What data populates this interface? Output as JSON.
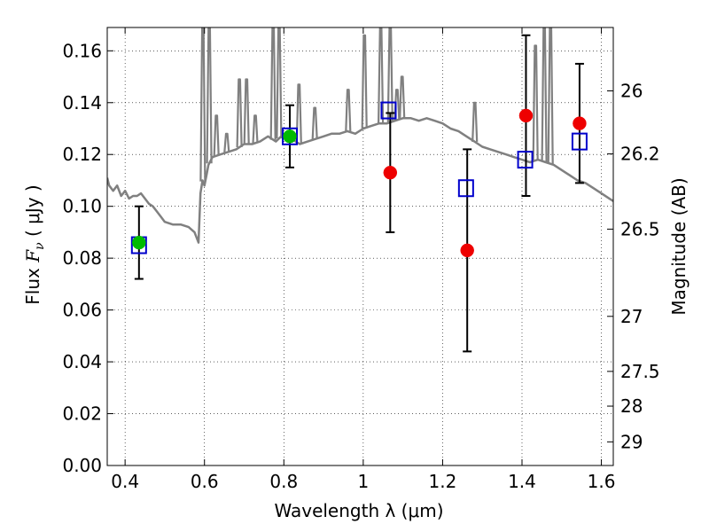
{
  "chart_data": {
    "type": "scatter",
    "title": "",
    "xlabel": "Wavelength  λ (μm)",
    "ylabel_parts": [
      "Flux  ",
      "F",
      "ν",
      "  ( μJy )"
    ],
    "y2label": "Magnitude (AB)",
    "xlim": [
      0.355,
      1.63
    ],
    "ylim": [
      0.0,
      0.169
    ],
    "grid": true,
    "grid_style": "dotted",
    "x_ticks": [
      0.4,
      0.6,
      0.8,
      1.0,
      1.2,
      1.4,
      1.6
    ],
    "x_tick_labels": [
      "0.4",
      "0.6",
      "0.8",
      "1",
      "1.2",
      "1.4",
      "1.6"
    ],
    "y_ticks": [
      0.0,
      0.02,
      0.04,
      0.06,
      0.08,
      0.1,
      0.12,
      0.14,
      0.16
    ],
    "y_tick_labels": [
      "0.00",
      "0.02",
      "0.04",
      "0.06",
      "0.08",
      "0.10",
      "0.12",
      "0.14",
      "0.16"
    ],
    "mag_ticks": [
      26,
      26.2,
      26.5,
      27,
      27.5,
      28,
      29
    ],
    "mag_tick_labels": [
      "26",
      "26.2",
      "26.5",
      "27",
      "27.5",
      "28",
      "29"
    ],
    "colors": {
      "model_spectrum": "#808080",
      "green_points": "#00bb00",
      "red_points": "#ee0000",
      "blue_squares": "#0000cc",
      "error_bars": "#000000"
    },
    "series": [
      {
        "kind": "line",
        "color": "#808080",
        "x": [
          0.355,
          0.36,
          0.37,
          0.38,
          0.39,
          0.4,
          0.41,
          0.42,
          0.43,
          0.44,
          0.45,
          0.46,
          0.47,
          0.48,
          0.49,
          0.5,
          0.52,
          0.54,
          0.56,
          0.575,
          0.585,
          0.59,
          0.595,
          0.6,
          0.605,
          0.61,
          0.62,
          0.64,
          0.66,
          0.68,
          0.7,
          0.72,
          0.74,
          0.76,
          0.78,
          0.8,
          0.82,
          0.84,
          0.86,
          0.88,
          0.9,
          0.92,
          0.94,
          0.96,
          0.98,
          1.0,
          1.02,
          1.04,
          1.06,
          1.08,
          1.1,
          1.12,
          1.14,
          1.16,
          1.18,
          1.2,
          1.22,
          1.24,
          1.26,
          1.28,
          1.3,
          1.32,
          1.34,
          1.36,
          1.38,
          1.4,
          1.42,
          1.44,
          1.46,
          1.48,
          1.5,
          1.52,
          1.54,
          1.56,
          1.58,
          1.6,
          1.62,
          1.63
        ],
        "y": [
          0.111,
          0.108,
          0.106,
          0.108,
          0.104,
          0.106,
          0.103,
          0.104,
          0.104,
          0.105,
          0.103,
          0.101,
          0.1,
          0.098,
          0.096,
          0.094,
          0.093,
          0.093,
          0.092,
          0.09,
          0.086,
          0.105,
          0.11,
          0.108,
          0.112,
          0.116,
          0.119,
          0.12,
          0.121,
          0.122,
          0.124,
          0.124,
          0.125,
          0.127,
          0.125,
          0.128,
          0.126,
          0.124,
          0.125,
          0.126,
          0.127,
          0.128,
          0.128,
          0.129,
          0.128,
          0.13,
          0.131,
          0.132,
          0.132,
          0.133,
          0.134,
          0.134,
          0.133,
          0.134,
          0.133,
          0.132,
          0.13,
          0.129,
          0.127,
          0.125,
          0.123,
          0.122,
          0.121,
          0.12,
          0.119,
          0.118,
          0.117,
          0.118,
          0.117,
          0.116,
          0.114,
          0.112,
          0.11,
          0.109,
          0.107,
          0.105,
          0.103,
          0.102
        ]
      },
      {
        "kind": "emission_lines",
        "color": "#808080",
        "lines": [
          {
            "x": 0.596,
            "y": 0.169
          },
          {
            "x": 0.612,
            "y": 0.169
          },
          {
            "x": 0.63,
            "y": 0.135
          },
          {
            "x": 0.656,
            "y": 0.128
          },
          {
            "x": 0.688,
            "y": 0.149
          },
          {
            "x": 0.706,
            "y": 0.149
          },
          {
            "x": 0.728,
            "y": 0.135
          },
          {
            "x": 0.773,
            "y": 0.169
          },
          {
            "x": 0.788,
            "y": 0.169
          },
          {
            "x": 0.838,
            "y": 0.147
          },
          {
            "x": 0.878,
            "y": 0.138
          },
          {
            "x": 0.962,
            "y": 0.145
          },
          {
            "x": 1.003,
            "y": 0.166
          },
          {
            "x": 1.044,
            "y": 0.169
          },
          {
            "x": 1.068,
            "y": 0.169
          },
          {
            "x": 1.085,
            "y": 0.145
          },
          {
            "x": 1.098,
            "y": 0.15
          },
          {
            "x": 1.281,
            "y": 0.14
          },
          {
            "x": 1.434,
            "y": 0.162
          },
          {
            "x": 1.456,
            "y": 0.169
          },
          {
            "x": 1.472,
            "y": 0.169
          }
        ]
      },
      {
        "kind": "errorbar",
        "color": "#000000",
        "points": [
          {
            "x": 0.435,
            "y": 0.086,
            "lo": 0.072,
            "hi": 0.1
          },
          {
            "x": 0.815,
            "y": 0.127,
            "lo": 0.115,
            "hi": 0.139
          },
          {
            "x": 1.068,
            "y": 0.113,
            "lo": 0.09,
            "hi": 0.136
          },
          {
            "x": 1.262,
            "y": 0.083,
            "lo": 0.044,
            "hi": 0.122
          },
          {
            "x": 1.41,
            "y": 0.135,
            "lo": 0.104,
            "hi": 0.166
          },
          {
            "x": 1.545,
            "y": 0.132,
            "lo": 0.109,
            "hi": 0.155
          }
        ]
      },
      {
        "kind": "square",
        "color": "#0000cc",
        "points": [
          {
            "x": 0.435,
            "y": 0.085
          },
          {
            "x": 0.815,
            "y": 0.127
          },
          {
            "x": 1.064,
            "y": 0.137
          },
          {
            "x": 1.259,
            "y": 0.107
          },
          {
            "x": 1.408,
            "y": 0.118
          },
          {
            "x": 1.545,
            "y": 0.125
          }
        ]
      },
      {
        "kind": "circle",
        "color": "#00bb00",
        "points": [
          {
            "x": 0.435,
            "y": 0.086
          },
          {
            "x": 0.815,
            "y": 0.127
          }
        ]
      },
      {
        "kind": "circle",
        "color": "#ee0000",
        "points": [
          {
            "x": 1.068,
            "y": 0.113
          },
          {
            "x": 1.262,
            "y": 0.083
          },
          {
            "x": 1.41,
            "y": 0.135
          },
          {
            "x": 1.545,
            "y": 0.132
          }
        ]
      }
    ]
  }
}
